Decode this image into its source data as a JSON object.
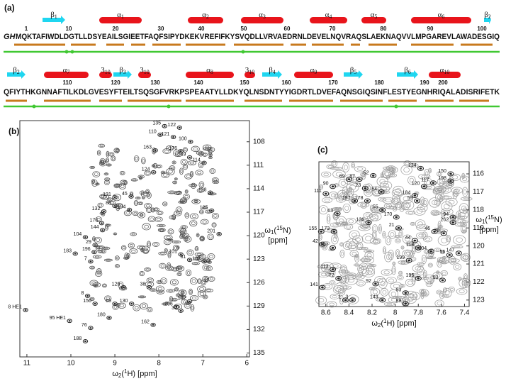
{
  "panel_a": {
    "label": "(a)",
    "prefix": "GH",
    "rows": [
      "MQKTAFIWDLDGTLLDSYEAILSGIEETFAQFSIPYDKEKVREFIFKYSVQDLLVRVAEDRNLDEVELNQVRAQSLAEKNAQVVLMPGAREVLAWADESGIQ",
      "QFIYTHKGNNAFTILKDLGVESYFTEILTSQSGFVRKPSPEAATYLLDKYQLNSDNTYYIGDRTLDVEFAQNSGIQSINFLESTYEGNHRIQALADISRIFETK"
    ],
    "numbers": [
      [
        1,
        10,
        20,
        30,
        40,
        50,
        60,
        70,
        80,
        90,
        100
      ],
      [
        110,
        120,
        130,
        140,
        150,
        160,
        170,
        180,
        190,
        200
      ]
    ],
    "elements": [
      {
        "main": "β",
        "sub": "1",
        "kind": "strand",
        "row": 0
      },
      {
        "main": "α",
        "sub": "1",
        "kind": "helix",
        "row": 0
      },
      {
        "main": "α",
        "sub": "2",
        "kind": "helix",
        "row": 0
      },
      {
        "main": "α",
        "sub": "3",
        "kind": "helix",
        "row": 0
      },
      {
        "main": "α",
        "sub": "4",
        "kind": "helix",
        "row": 0
      },
      {
        "main": "α",
        "sub": "5",
        "kind": "helix",
        "row": 0
      },
      {
        "main": "α",
        "sub": "6",
        "kind": "helix",
        "row": 0
      },
      {
        "main": "β",
        "sub": "2",
        "kind": "strand",
        "row": 0
      },
      {
        "main": "β",
        "sub": "2",
        "kind": "strand",
        "row": 1
      },
      {
        "main": "α",
        "sub": "7",
        "kind": "helix",
        "row": 1
      },
      {
        "main": "3",
        "sub": "10",
        "kind": "helix",
        "row": 1
      },
      {
        "main": "β",
        "sub": "3",
        "kind": "strand",
        "row": 1
      },
      {
        "main": "3",
        "sub": "10",
        "kind": "helix",
        "row": 1
      },
      {
        "main": "α",
        "sub": "8",
        "kind": "helix",
        "row": 1
      },
      {
        "main": "3",
        "sub": "10",
        "kind": "helix",
        "row": 1
      },
      {
        "main": "β",
        "sub": "4",
        "kind": "strand",
        "row": 1
      },
      {
        "main": "α",
        "sub": "9",
        "kind": "helix",
        "row": 1
      },
      {
        "main": "β",
        "sub": "5",
        "kind": "strand",
        "row": 1
      },
      {
        "main": "β",
        "sub": "6",
        "kind": "strand",
        "row": 1
      },
      {
        "main": "α",
        "sub": "10",
        "kind": "helix",
        "row": 1
      }
    ]
  },
  "panel_b": {
    "label": "(b)",
    "xlim": [
      11.16,
      5.94
    ],
    "ylim": [
      105.3,
      135.5
    ],
    "xticks": [
      11,
      10,
      9,
      8,
      7,
      6
    ],
    "yticks": [
      108,
      111,
      114,
      117,
      120,
      123,
      126,
      129,
      132,
      135
    ],
    "x_label": [
      "ω",
      "2",
      "(",
      "1",
      "H) [ppm]"
    ],
    "y_label": [
      "ω",
      "1",
      "(",
      "15",
      "N)"
    ],
    "y_unit": "[ppm]",
    "peaks": [
      {
        "label": "135",
        "h": 7.87,
        "n": 106.0
      },
      {
        "label": "122",
        "h": 7.53,
        "n": 106.2
      },
      {
        "label": "110",
        "h": 7.97,
        "n": 107.1
      },
      {
        "label": "121",
        "h": 7.67,
        "n": 107.4
      },
      {
        "label": "100",
        "h": 7.28,
        "n": 108.0
      },
      {
        "label": "163",
        "h": 8.08,
        "n": 109.1
      },
      {
        "label": "176",
        "h": 7.5,
        "n": 109.2
      },
      {
        "label": "49",
        "h": 7.3,
        "n": 110.0
      },
      {
        "label": "114",
        "h": 6.97,
        "n": 110.7
      },
      {
        "label": "124",
        "h": 8.12,
        "n": 111.9
      },
      {
        "label": "131",
        "h": 9.0,
        "n": 115.1
      },
      {
        "label": "45",
        "h": 8.63,
        "n": 115.0
      },
      {
        "label": "88",
        "h": 9.0,
        "n": 116.2
      },
      {
        "label": "128",
        "h": 6.83,
        "n": 114.5
      },
      {
        "label": "125",
        "h": 6.8,
        "n": 116.8
      },
      {
        "label": "132",
        "h": 9.25,
        "n": 116.9
      },
      {
        "label": "194",
        "h": 8.67,
        "n": 116.7
      },
      {
        "label": "174",
        "h": 9.3,
        "n": 118.4
      },
      {
        "label": "144",
        "h": 9.28,
        "n": 119.3
      },
      {
        "label": "201",
        "h": 6.63,
        "n": 119.8
      },
      {
        "label": "104",
        "h": 9.67,
        "n": 120.2
      },
      {
        "label": "29",
        "h": 9.45,
        "n": 121.2
      },
      {
        "label": "183",
        "h": 9.9,
        "n": 122.3
      },
      {
        "label": "196",
        "h": 9.47,
        "n": 122.1
      },
      {
        "label": "7",
        "h": 9.55,
        "n": 123.3
      },
      {
        "label": "182",
        "h": 6.97,
        "n": 123.3
      },
      {
        "label": "81",
        "h": 7.3,
        "n": 123.1
      },
      {
        "label": "101",
        "h": 7.5,
        "n": 122.4
      },
      {
        "label": "129",
        "h": 8.8,
        "n": 126.6
      },
      {
        "label": "38",
        "h": 8.22,
        "n": 126.6
      },
      {
        "label": "8",
        "h": 9.62,
        "n": 127.7
      },
      {
        "label": "156",
        "h": 9.45,
        "n": 128.7
      },
      {
        "label": "65",
        "h": 9.0,
        "n": 128.7
      },
      {
        "label": "130",
        "h": 8.62,
        "n": 128.7
      },
      {
        "label": "206",
        "h": 7.6,
        "n": 129.1
      },
      {
        "label": "102",
        "h": 7.3,
        "n": 128.4
      },
      {
        "label": "37",
        "h": 7.5,
        "n": 129.6
      },
      {
        "label": "8 HE1",
        "h": 11.03,
        "n": 129.5
      },
      {
        "label": "95 HE1",
        "h": 10.03,
        "n": 130.9
      },
      {
        "label": "180",
        "h": 9.13,
        "n": 130.5
      },
      {
        "label": "76",
        "h": 9.55,
        "n": 131.8
      },
      {
        "label": "162",
        "h": 8.13,
        "n": 131.4
      },
      {
        "label": "188",
        "h": 9.67,
        "n": 133.5
      }
    ]
  },
  "panel_c": {
    "label": "(c)",
    "xlim": [
      8.66,
      7.36
    ],
    "ylim": [
      115.33,
      123.36
    ],
    "xticks": [
      8.6,
      8.4,
      8.2,
      8.0,
      7.8,
      7.6,
      7.4
    ],
    "yticks": [
      116,
      117,
      118,
      119,
      120,
      121,
      122,
      123
    ],
    "x_label": [
      "ω",
      "2",
      "(",
      "1",
      "H) [ppm]"
    ],
    "y_label": [
      "ω",
      "1",
      "(",
      "15",
      "N)"
    ],
    "y_unit": "[ppm]",
    "peaks": [
      {
        "label": "134",
        "h": 7.78,
        "n": 115.7
      },
      {
        "label": "150",
        "h": 7.52,
        "n": 116.0
      },
      {
        "label": "52",
        "h": 8.19,
        "n": 116.1
      },
      {
        "label": "198",
        "h": 7.52,
        "n": 116.4
      },
      {
        "label": "117",
        "h": 7.67,
        "n": 116.5
      },
      {
        "label": "120",
        "h": 7.75,
        "n": 116.7
      },
      {
        "label": "69",
        "h": 8.4,
        "n": 116.3
      },
      {
        "label": "87",
        "h": 8.31,
        "n": 116.3
      },
      {
        "label": "23",
        "h": 8.26,
        "n": 116.8
      },
      {
        "label": "90",
        "h": 8.54,
        "n": 116.7
      },
      {
        "label": "111",
        "h": 8.6,
        "n": 117.1
      },
      {
        "label": "54",
        "h": 8.12,
        "n": 117.0
      },
      {
        "label": "59",
        "h": 7.81,
        "n": 117.5
      },
      {
        "label": "184",
        "h": 7.83,
        "n": 117.2
      },
      {
        "label": "55",
        "h": 8.11,
        "n": 118.0
      },
      {
        "label": "178",
        "h": 8.24,
        "n": 117.5
      },
      {
        "label": "197",
        "h": 8.35,
        "n": 117.5
      },
      {
        "label": "63",
        "h": 8.5,
        "n": 118.2
      },
      {
        "label": "173",
        "h": 8.53,
        "n": 119.2
      },
      {
        "label": "155",
        "h": 8.64,
        "n": 119.2
      },
      {
        "label": "136",
        "h": 8.23,
        "n": 118.7
      },
      {
        "label": "170",
        "h": 7.99,
        "n": 118.4
      },
      {
        "label": "21",
        "h": 7.97,
        "n": 119.0
      },
      {
        "label": "46",
        "h": 7.66,
        "n": 119.2
      },
      {
        "label": "94",
        "h": 7.5,
        "n": 118.4
      },
      {
        "label": "262",
        "h": 7.5,
        "n": 118.7
      },
      {
        "label": "79",
        "h": 7.58,
        "n": 119.3
      },
      {
        "label": "147",
        "h": 7.45,
        "n": 120.4
      },
      {
        "label": "56",
        "h": 7.53,
        "n": 120.5
      },
      {
        "label": "204",
        "h": 7.69,
        "n": 120.3
      },
      {
        "label": "44",
        "h": 7.83,
        "n": 119.7
      },
      {
        "label": "118",
        "h": 7.8,
        "n": 120.1
      },
      {
        "label": "199",
        "h": 7.88,
        "n": 120.8
      },
      {
        "label": "113",
        "h": 8.54,
        "n": 121.3
      },
      {
        "label": "107",
        "h": 8.54,
        "n": 120.1
      },
      {
        "label": "42",
        "h": 8.63,
        "n": 119.9
      },
      {
        "label": "195",
        "h": 7.8,
        "n": 121.8
      },
      {
        "label": "53",
        "h": 7.59,
        "n": 121.9
      },
      {
        "label": "141",
        "h": 8.63,
        "n": 122.3
      },
      {
        "label": "1",
        "h": 8.43,
        "n": 123.0
      },
      {
        "label": "3",
        "h": 8.37,
        "n": 123.0
      },
      {
        "label": "143",
        "h": 8.11,
        "n": 123.0
      },
      {
        "label": "89",
        "h": 7.91,
        "n": 123.2
      },
      {
        "label": "93",
        "h": 7.91,
        "n": 122.6
      },
      {
        "label": "92",
        "h": 8.17,
        "n": 122.1
      },
      {
        "label": "72",
        "h": 8.49,
        "n": 121.8
      }
    ]
  }
}
